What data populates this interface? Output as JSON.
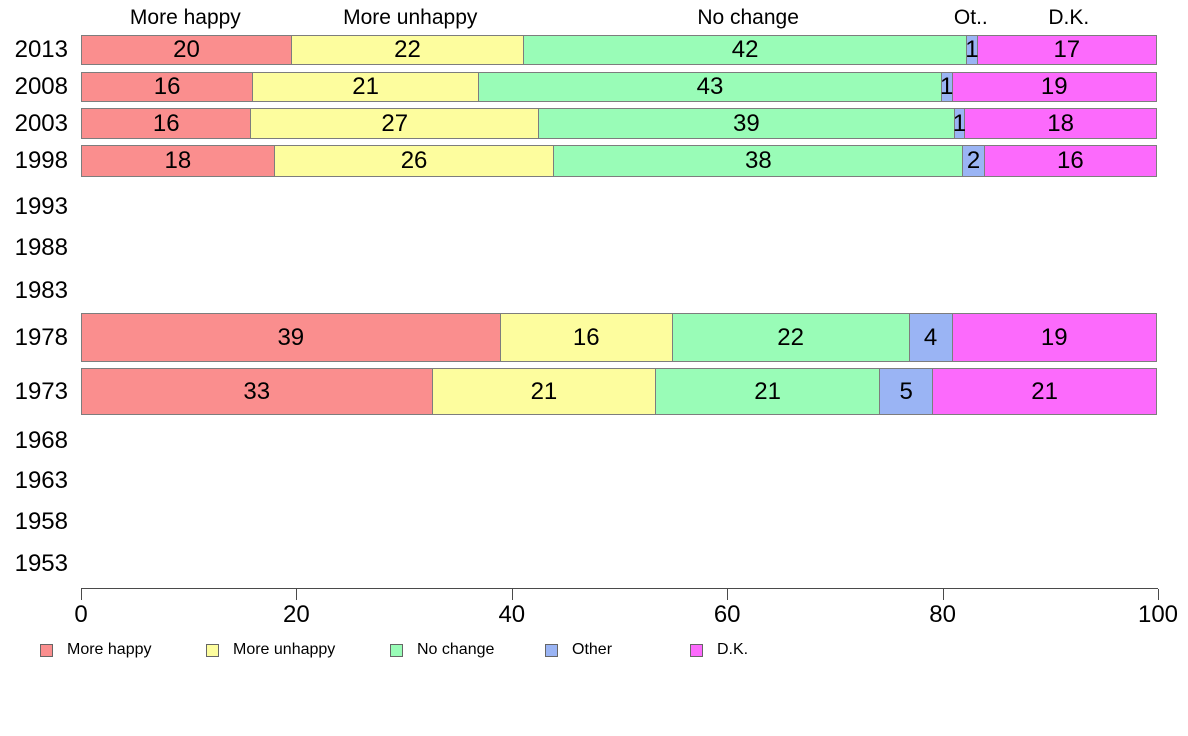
{
  "chart_data": {
    "type": "bar",
    "orientation": "horizontal",
    "stacked": true,
    "title": "",
    "xlabel": "",
    "ylabel": "",
    "categories": [
      "2013",
      "2008",
      "2003",
      "1998",
      "1993",
      "1988",
      "1983",
      "1978",
      "1973",
      "1968",
      "1963",
      "1958",
      "1953"
    ],
    "series": [
      {
        "name": "More happy",
        "color": "#fa8e8e",
        "values": [
          20,
          16,
          16,
          18,
          null,
          null,
          null,
          39,
          33,
          null,
          null,
          null,
          null
        ]
      },
      {
        "name": "More unhappy",
        "color": "#fdfd9e",
        "values": [
          22,
          21,
          27,
          26,
          null,
          null,
          null,
          16,
          21,
          null,
          null,
          null,
          null
        ]
      },
      {
        "name": "No change",
        "color": "#99fcb7",
        "values": [
          42,
          43,
          39,
          38,
          null,
          null,
          null,
          22,
          21,
          null,
          null,
          null,
          null
        ]
      },
      {
        "name": "Other",
        "color": "#9ab4f4",
        "values": [
          1,
          1,
          1,
          2,
          null,
          null,
          null,
          4,
          5,
          null,
          null,
          null,
          null
        ]
      },
      {
        "name": "D.K.",
        "color": "#fc6afc",
        "values": [
          17,
          19,
          18,
          16,
          null,
          null,
          null,
          19,
          21,
          null,
          null,
          null,
          null
        ]
      }
    ],
    "column_headers": [
      {
        "label": "More happy",
        "center_pct": 9.7
      },
      {
        "label": "More unhappy",
        "center_pct": 30.6
      },
      {
        "label": "No change",
        "center_pct": 62.0
      },
      {
        "label": "Ot..",
        "center_pct": 82.7
      },
      {
        "label": "D.K.",
        "center_pct": 91.8
      }
    ],
    "x_axis": {
      "min": 0,
      "max": 100,
      "ticks": [
        "0",
        "20",
        "40",
        "60",
        "80",
        "100"
      ]
    },
    "legend": {
      "position": "bottom",
      "items": [
        {
          "label": "More happy",
          "color": "#fa8e8e"
        },
        {
          "label": "More unhappy",
          "color": "#fdfd9e"
        },
        {
          "label": "No change",
          "color": "#99fcb7"
        },
        {
          "label": "Other",
          "color": "#9ab4f4"
        },
        {
          "label": "D.K.",
          "color": "#fc6afc"
        }
      ]
    }
  }
}
